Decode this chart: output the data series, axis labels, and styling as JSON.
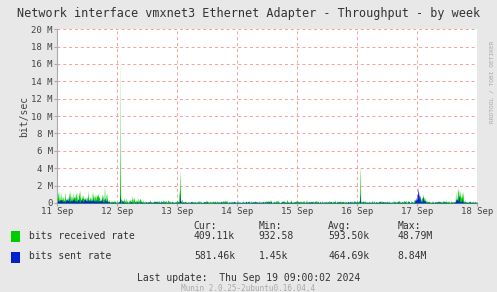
{
  "title": "Network interface vmxnet3 Ethernet Adapter - Throughput - by week",
  "ylabel": "bit/sec",
  "background_color": "#e8e8e8",
  "plot_bg_color": "#ffffff",
  "grid_color": "#ff9999",
  "title_color": "#333333",
  "x_start": 0,
  "x_end": 604800,
  "y_max": 20000000,
  "y_ticks": [
    0,
    2000000,
    4000000,
    6000000,
    8000000,
    10000000,
    12000000,
    14000000,
    16000000,
    18000000,
    20000000
  ],
  "y_tick_labels": [
    "0",
    "2 M",
    "4 M",
    "6 M",
    "8 M",
    "10 M",
    "12 M",
    "14 M",
    "16 M",
    "18 M",
    "20 M"
  ],
  "x_tick_positions": [
    0,
    86400,
    172800,
    259200,
    345600,
    432000,
    518400,
    604800
  ],
  "x_tick_labels": [
    "11 Sep",
    "12 Sep",
    "13 Sep",
    "14 Sep",
    "15 Sep",
    "16 Sep",
    "17 Sep",
    "18 Sep"
  ],
  "vline_positions": [
    86400,
    172800,
    259200,
    345600,
    432000,
    518400
  ],
  "green_color": "#00cc00",
  "blue_color": "#0022cc",
  "legend_items": [
    "bits received rate",
    "bits sent rate"
  ],
  "cur_label": "Cur:",
  "min_label": "Min:",
  "avg_label": "Avg:",
  "max_label": "Max:",
  "green_cur": "409.11k",
  "green_min": "932.58",
  "green_avg": "593.50k",
  "green_max": "48.79M",
  "blue_cur": "581.46k",
  "blue_min": "1.45k",
  "blue_avg": "464.69k",
  "blue_max": "8.84M",
  "last_update": "Last update:  Thu Sep 19 09:00:02 2024",
  "munin_version": "Munin 2.0.25-2ubuntu0.16.04.4",
  "rrdtool_label": "RRDTOOL / TOBI OETIKER",
  "font_family": "monospace"
}
